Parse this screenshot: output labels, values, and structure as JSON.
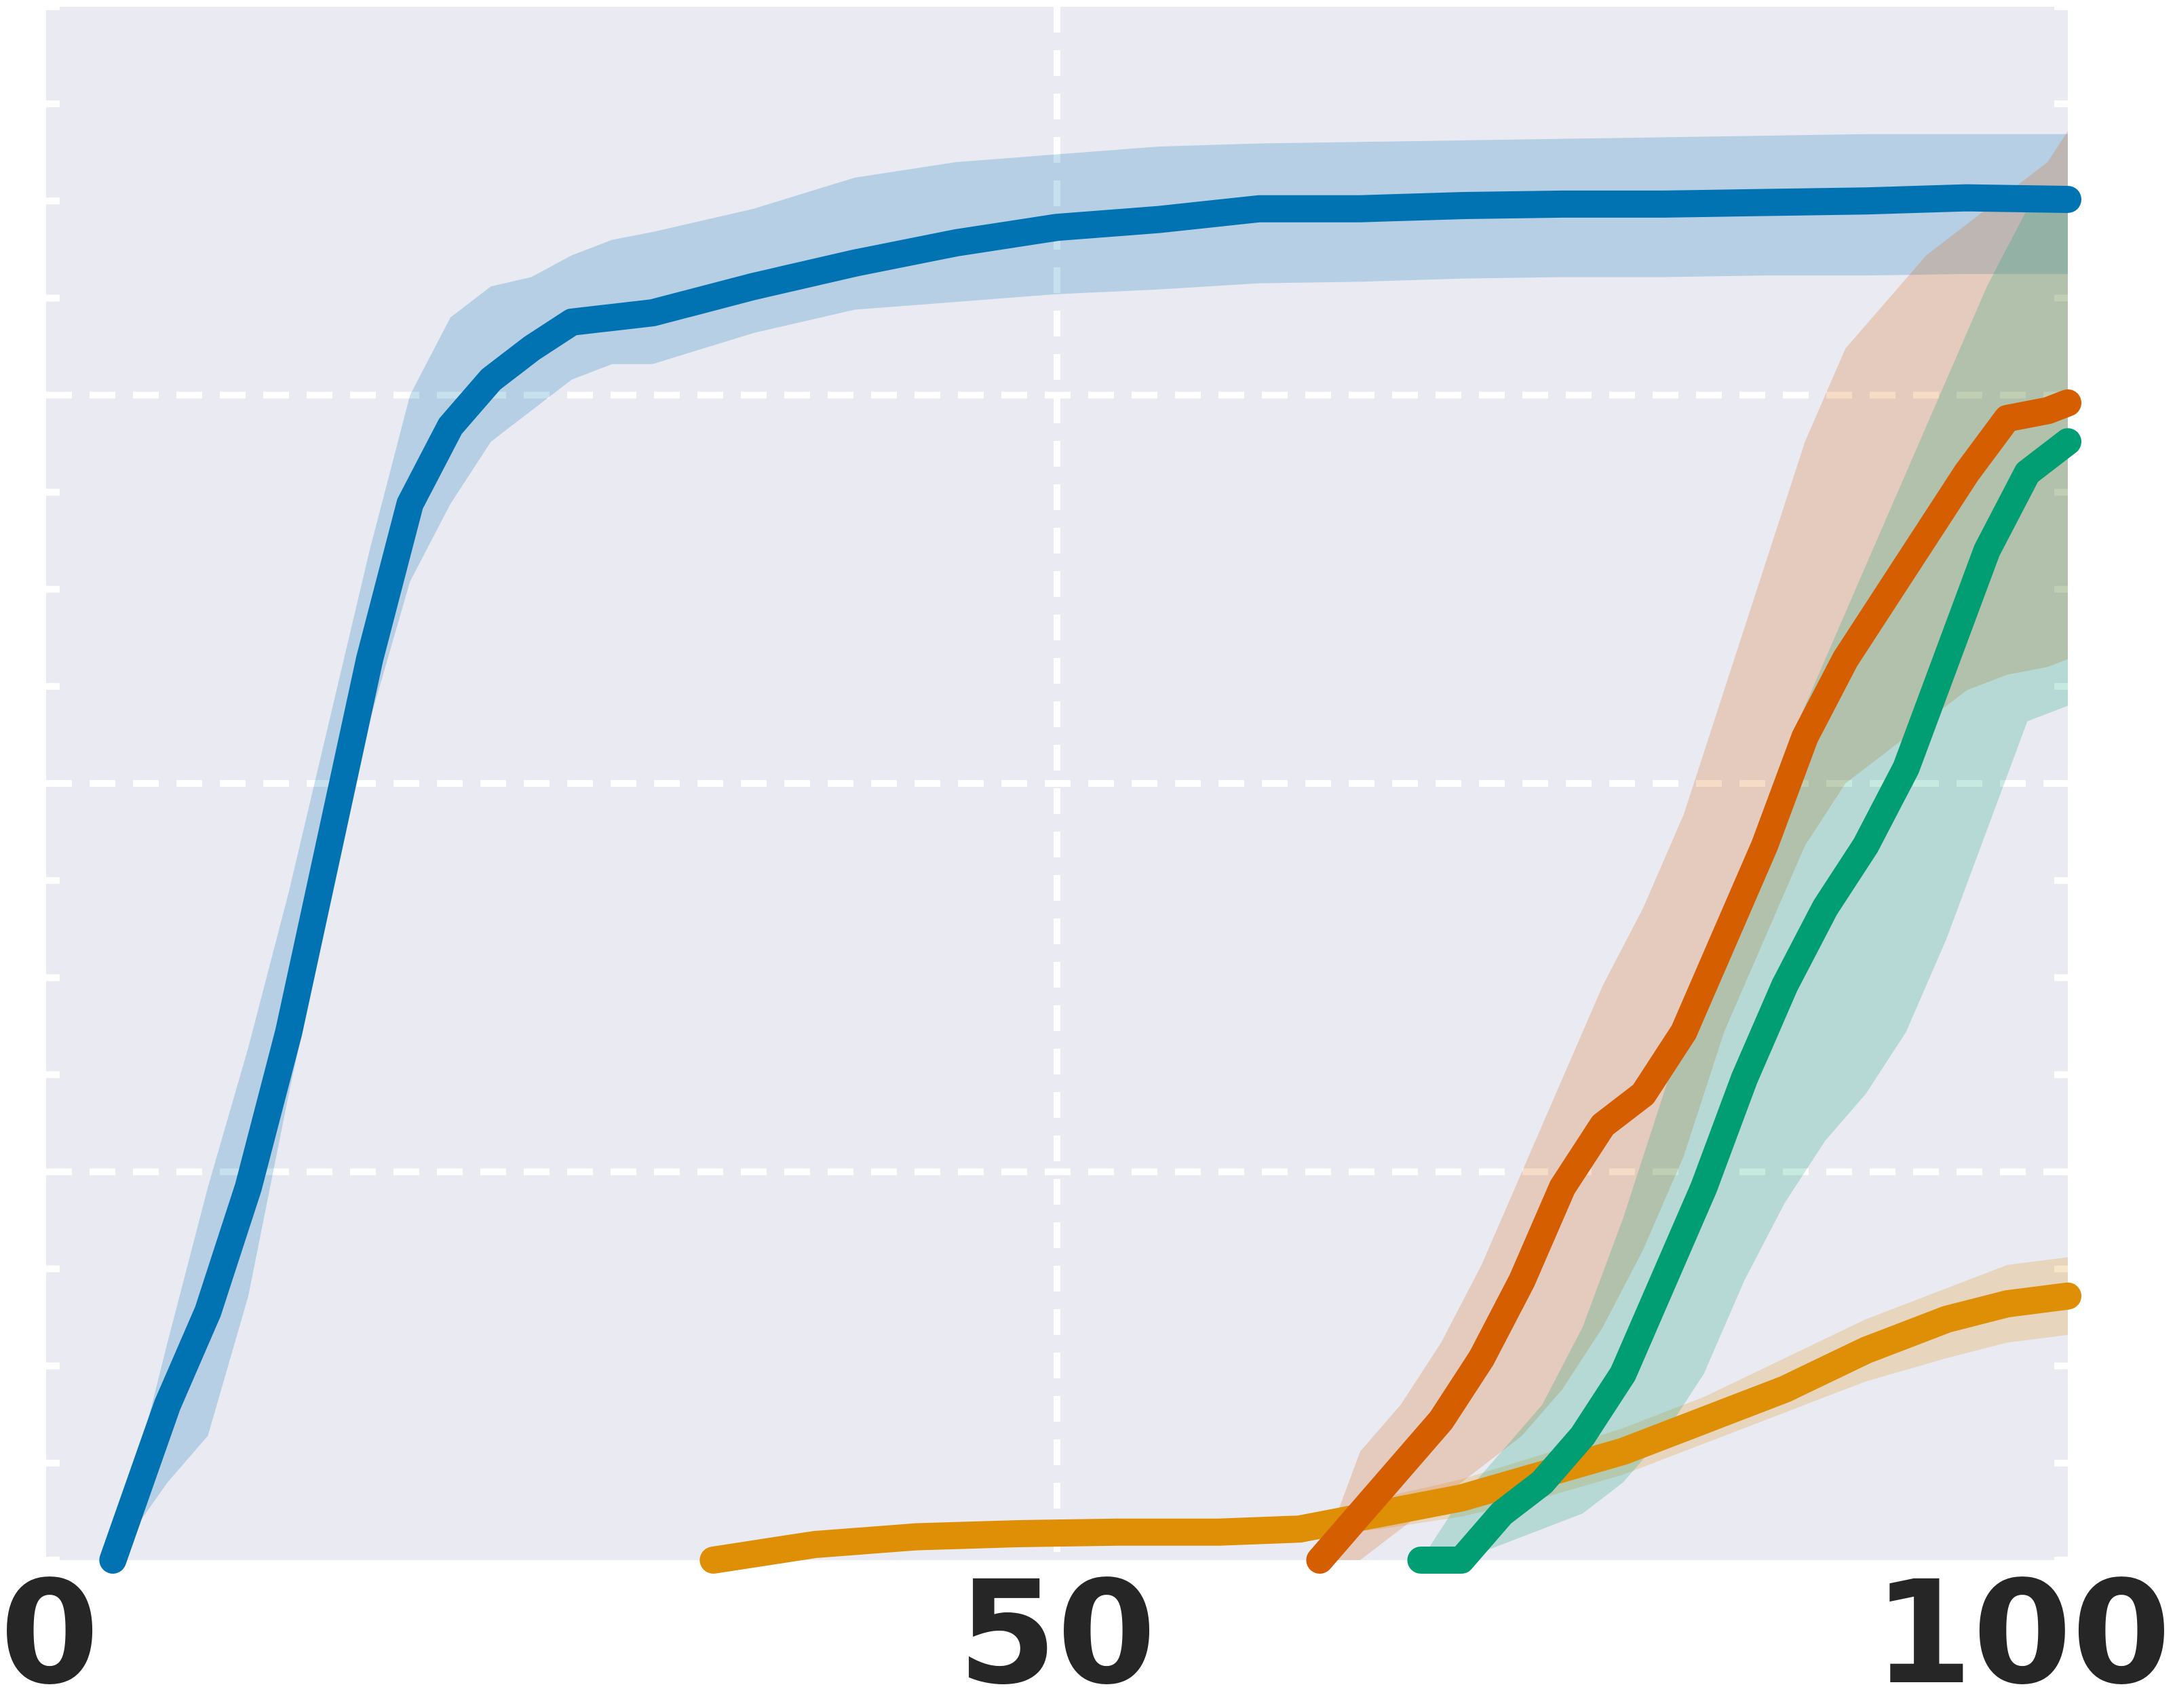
{
  "chart_data": {
    "type": "line",
    "title": "",
    "xlabel": "",
    "ylabel": "",
    "xlim": [
      0,
      100
    ],
    "ylim": [
      0,
      1
    ],
    "x_ticks": [
      "0",
      "50",
      "100"
    ],
    "y_gridlines": [
      0.25,
      0.5,
      0.75
    ],
    "grid": true,
    "legend": "none",
    "background_color": "#eaeaf2",
    "series": [
      {
        "color": "#0173b2",
        "x": [
          3.3,
          6,
          8,
          10,
          12,
          14,
          16,
          18,
          20,
          22,
          24,
          26,
          28,
          30,
          35,
          40,
          45,
          50,
          55,
          60,
          65,
          70,
          75,
          80,
          85,
          90,
          95,
          100
        ],
        "y": [
          0.0,
          0.1,
          0.16,
          0.24,
          0.34,
          0.46,
          0.58,
          0.68,
          0.73,
          0.76,
          0.78,
          0.797,
          0.8,
          0.803,
          0.82,
          0.835,
          0.848,
          0.858,
          0.863,
          0.87,
          0.87,
          0.872,
          0.873,
          0.873,
          0.874,
          0.875,
          0.877,
          0.876
        ],
        "lower": [
          0.0,
          0.05,
          0.08,
          0.17,
          0.3,
          0.42,
          0.54,
          0.63,
          0.68,
          0.72,
          0.74,
          0.76,
          0.77,
          0.77,
          0.79,
          0.805,
          0.81,
          0.815,
          0.818,
          0.822,
          0.823,
          0.825,
          0.826,
          0.826,
          0.827,
          0.827,
          0.828,
          0.828
        ],
        "upper": [
          0.0,
          0.14,
          0.24,
          0.33,
          0.43,
          0.54,
          0.65,
          0.75,
          0.8,
          0.82,
          0.826,
          0.84,
          0.85,
          0.855,
          0.87,
          0.89,
          0.9,
          0.905,
          0.91,
          0.912,
          0.913,
          0.914,
          0.915,
          0.916,
          0.917,
          0.918,
          0.918,
          0.918
        ]
      },
      {
        "color": "#de8f05",
        "x": [
          33,
          38,
          43,
          48,
          53,
          58,
          62,
          66,
          70,
          74,
          78,
          82,
          86,
          90,
          94,
          97,
          100
        ],
        "y": [
          0.0,
          0.01,
          0.015,
          0.017,
          0.018,
          0.018,
          0.02,
          0.03,
          0.04,
          0.055,
          0.07,
          0.09,
          0.11,
          0.135,
          0.155,
          0.165,
          0.17
        ],
        "lower": [
          0.0,
          0.005,
          0.01,
          0.012,
          0.013,
          0.013,
          0.015,
          0.02,
          0.028,
          0.04,
          0.055,
          0.075,
          0.095,
          0.115,
          0.13,
          0.14,
          0.145
        ],
        "upper": [
          0.0,
          0.015,
          0.02,
          0.022,
          0.024,
          0.024,
          0.028,
          0.04,
          0.052,
          0.068,
          0.085,
          0.105,
          0.13,
          0.155,
          0.175,
          0.19,
          0.195
        ]
      },
      {
        "color": "#d55e00",
        "x": [
          63,
          65,
          67,
          69,
          71,
          73,
          75,
          77,
          79,
          81,
          83,
          85,
          87,
          89,
          91,
          93,
          95,
          97,
          99,
          100
        ],
        "y": [
          0.0,
          0.03,
          0.06,
          0.09,
          0.13,
          0.18,
          0.24,
          0.28,
          0.3,
          0.34,
          0.4,
          0.46,
          0.53,
          0.58,
          0.62,
          0.66,
          0.7,
          0.735,
          0.74,
          0.745
        ],
        "lower": [
          0.0,
          0.0,
          0.02,
          0.04,
          0.06,
          0.08,
          0.11,
          0.15,
          0.2,
          0.26,
          0.34,
          0.4,
          0.46,
          0.5,
          0.52,
          0.54,
          0.56,
          0.57,
          0.575,
          0.58
        ],
        "upper": [
          0.0,
          0.07,
          0.1,
          0.14,
          0.19,
          0.25,
          0.31,
          0.37,
          0.42,
          0.48,
          0.56,
          0.64,
          0.72,
          0.78,
          0.81,
          0.84,
          0.86,
          0.88,
          0.9,
          0.92
        ]
      },
      {
        "color": "#029e73",
        "x": [
          68,
          70,
          72,
          74,
          76,
          78,
          80,
          82,
          84,
          86,
          88,
          90,
          92,
          94,
          96,
          98,
          100
        ],
        "y": [
          0.0,
          0.0,
          0.03,
          0.05,
          0.08,
          0.12,
          0.18,
          0.24,
          0.31,
          0.37,
          0.42,
          0.46,
          0.51,
          0.58,
          0.65,
          0.7,
          0.72
        ],
        "lower": [
          0.0,
          0.0,
          0.01,
          0.02,
          0.03,
          0.05,
          0.08,
          0.12,
          0.18,
          0.23,
          0.27,
          0.3,
          0.34,
          0.4,
          0.47,
          0.54,
          0.55
        ],
        "upper": [
          0.0,
          0.04,
          0.07,
          0.1,
          0.15,
          0.22,
          0.3,
          0.38,
          0.45,
          0.52,
          0.58,
          0.64,
          0.7,
          0.76,
          0.82,
          0.87,
          0.88
        ]
      }
    ]
  }
}
